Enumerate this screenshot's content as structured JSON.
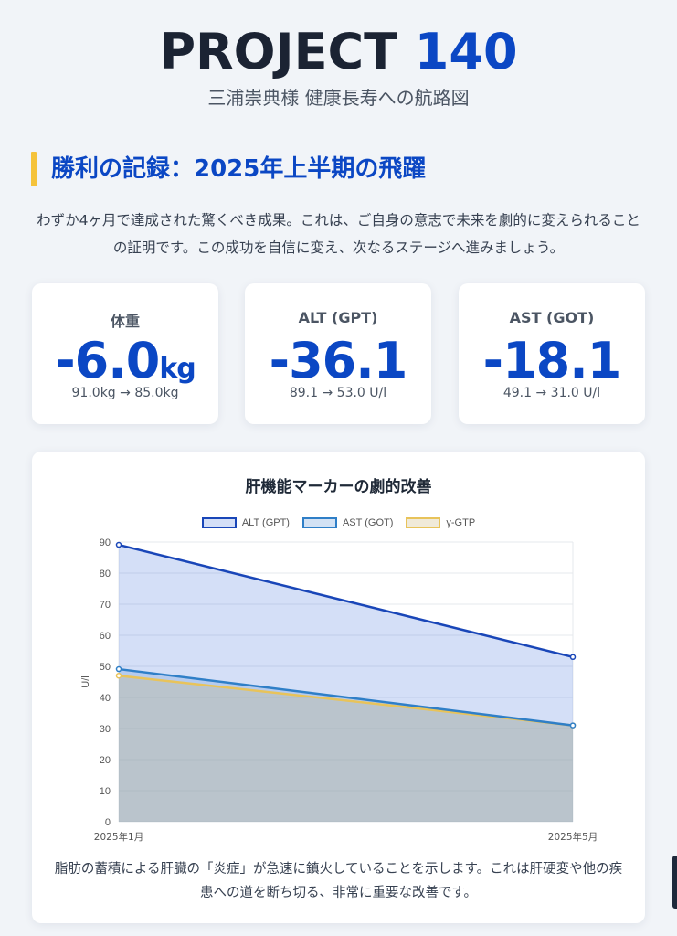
{
  "header": {
    "title_main": "PROJECT",
    "title_num": "140",
    "subtitle": "三浦崇典様 健康長寿への航路図"
  },
  "section": {
    "title": "勝利の記録：2025年上半期の飛躍",
    "intro": "わずか4ヶ月で達成された驚くべき成果。これは、ご自身の意志で未来を劇的に変えられることの証明です。この成功を自信に変え、次なるステージへ進みましょう。"
  },
  "stats": [
    {
      "label": "体重",
      "value": "-6.0",
      "unit": "kg",
      "detail": "91.0kg → 85.0kg"
    },
    {
      "label": "ALT (GPT)",
      "value": "-36.1",
      "unit": "",
      "detail": "89.1 → 53.0 U/l"
    },
    {
      "label": "AST (GOT)",
      "value": "-18.1",
      "unit": "",
      "detail": "49.1 → 31.0 U/l"
    }
  ],
  "chart_card": {
    "title": "肝機能マーカーの劇的改善",
    "note": "脂肪の蓄積による肝臓の「炎症」が急速に鎮火していることを示します。これは肝硬変や他の疾患への道を断ち切る、非常に重要な改善です。"
  },
  "chart_data": {
    "type": "area",
    "title": "肝機能マーカーの劇的改善",
    "categories": [
      "2025年1月",
      "2025年5月"
    ],
    "ylabel": "U/l",
    "xlabel": "",
    "ylim": [
      0,
      90
    ],
    "yticks": [
      0,
      10,
      20,
      30,
      40,
      50,
      60,
      70,
      80,
      90
    ],
    "grid": true,
    "legend_position": "top",
    "series": [
      {
        "name": "ALT (GPT)",
        "values": [
          89.1,
          53.0
        ],
        "color": "#1946b8",
        "fill": "rgba(60,110,220,0.22)"
      },
      {
        "name": "AST (GOT)",
        "values": [
          49.1,
          31.0
        ],
        "color": "#2f7fc7",
        "fill": "rgba(110,160,220,0.30)"
      },
      {
        "name": "γ-GTP",
        "values": [
          47,
          31
        ],
        "color": "#e8c35a",
        "fill": "rgba(200,180,120,0.28)"
      }
    ]
  },
  "colors": {
    "accent": "#0b47c4",
    "section_bar": "#f5c33b",
    "background": "#f1f4f8"
  }
}
